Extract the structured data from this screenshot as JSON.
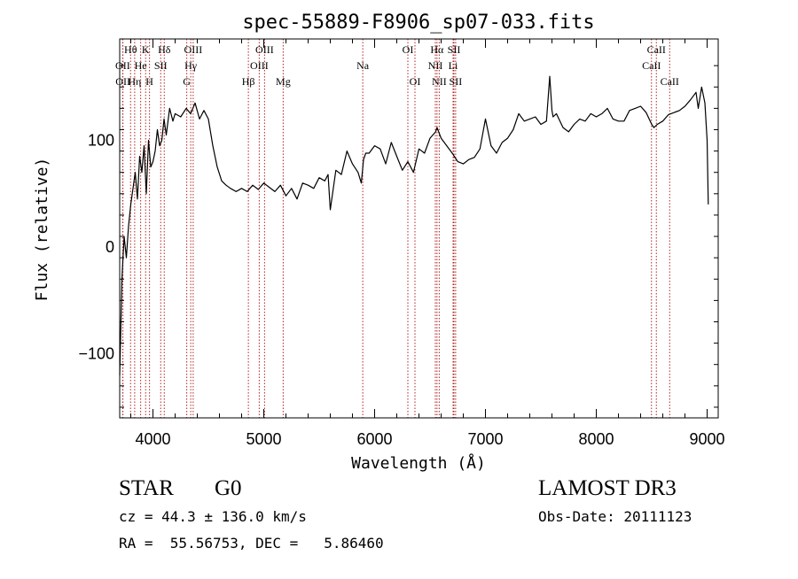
{
  "chart_data": {
    "type": "line",
    "title": "spec-55889-F8906_sp07-033.fits",
    "xlabel": "Wavelength (Å)",
    "ylabel": "Flux (relative)",
    "xlim": [
      3700,
      9100
    ],
    "ylim": [
      -160,
      195
    ],
    "x_ticks": [
      4000,
      5000,
      6000,
      7000,
      8000,
      9000
    ],
    "y_ticks": [
      -100,
      0,
      100
    ],
    "series": [
      {
        "name": "flux",
        "x": [
          3700,
          3720,
          3740,
          3760,
          3780,
          3800,
          3820,
          3840,
          3860,
          3880,
          3900,
          3920,
          3940,
          3960,
          3980,
          4000,
          4020,
          4040,
          4060,
          4080,
          4100,
          4120,
          4150,
          4180,
          4200,
          4250,
          4300,
          4340,
          4380,
          4420,
          4460,
          4500,
          4540,
          4580,
          4620,
          4660,
          4700,
          4750,
          4800,
          4850,
          4900,
          4950,
          5000,
          5050,
          5100,
          5150,
          5200,
          5250,
          5300,
          5350,
          5400,
          5450,
          5500,
          5550,
          5580,
          5600,
          5650,
          5700,
          5750,
          5800,
          5850,
          5880,
          5900,
          5920,
          5950,
          6000,
          6050,
          6100,
          6150,
          6200,
          6250,
          6300,
          6350,
          6400,
          6450,
          6500,
          6550,
          6563,
          6600,
          6650,
          6700,
          6750,
          6800,
          6850,
          6900,
          6950,
          7000,
          7050,
          7100,
          7150,
          7200,
          7250,
          7300,
          7350,
          7400,
          7450,
          7500,
          7550,
          7580,
          7600,
          7610,
          7640,
          7700,
          7750,
          7800,
          7850,
          7900,
          7950,
          8000,
          8050,
          8100,
          8150,
          8200,
          8250,
          8300,
          8350,
          8400,
          8450,
          8500,
          8520,
          8550,
          8600,
          8650,
          8700,
          8750,
          8800,
          8850,
          8900,
          8920,
          8950,
          8980,
          9000,
          9010
        ],
        "y": [
          -120,
          -30,
          10,
          -10,
          20,
          40,
          55,
          70,
          45,
          85,
          70,
          95,
          50,
          100,
          75,
          80,
          90,
          110,
          95,
          100,
          120,
          105,
          130,
          118,
          125,
          122,
          130,
          125,
          135,
          120,
          128,
          120,
          95,
          75,
          62,
          58,
          55,
          52,
          55,
          52,
          58,
          54,
          60,
          56,
          52,
          58,
          48,
          55,
          45,
          60,
          58,
          55,
          65,
          62,
          68,
          35,
          72,
          68,
          90,
          78,
          70,
          60,
          82,
          88,
          88,
          95,
          92,
          78,
          98,
          85,
          72,
          80,
          70,
          92,
          88,
          102,
          108,
          112,
          102,
          95,
          88,
          80,
          78,
          82,
          84,
          92,
          120,
          95,
          88,
          98,
          102,
          110,
          125,
          118,
          120,
          122,
          115,
          118,
          160,
          128,
          122,
          125,
          112,
          108,
          115,
          120,
          118,
          125,
          122,
          125,
          130,
          120,
          118,
          118,
          128,
          130,
          132,
          126,
          115,
          112,
          115,
          118,
          124,
          126,
          128,
          132,
          138,
          145,
          130,
          150,
          135,
          100,
          40
        ]
      }
    ],
    "lines": [
      {
        "label": "Hθ",
        "x": 3798,
        "row": 0
      },
      {
        "label": "OII",
        "x": 3727,
        "row": 1
      },
      {
        "label": "OII",
        "x": 3729,
        "row": 2
      },
      {
        "label": "K",
        "x": 3934,
        "row": 0
      },
      {
        "label": "He",
        "x": 3889,
        "row": 1
      },
      {
        "label": "Hη",
        "x": 3835,
        "row": 2
      },
      {
        "label": "SII",
        "x": 4070,
        "row": 1
      },
      {
        "label": "H",
        "x": 3969,
        "row": 2
      },
      {
        "label": "Hδ",
        "x": 4102,
        "row": 0
      },
      {
        "label": "OIII",
        "x": 4363,
        "row": 0
      },
      {
        "label": "Hγ",
        "x": 4341,
        "row": 1
      },
      {
        "label": "G",
        "x": 4305,
        "row": 2
      },
      {
        "label": "Hβ",
        "x": 4861,
        "row": 2
      },
      {
        "label": "OIII",
        "x": 5007,
        "row": 0
      },
      {
        "label": "OIII",
        "x": 4959,
        "row": 1
      },
      {
        "label": "Mg",
        "x": 5175,
        "row": 2
      },
      {
        "label": "Na",
        "x": 5893,
        "row": 1
      },
      {
        "label": "OI",
        "x": 6300,
        "row": 0
      },
      {
        "label": "OI",
        "x": 6364,
        "row": 2
      },
      {
        "label": "Hα",
        "x": 6563,
        "row": 0
      },
      {
        "label": "SII",
        "x": 6716,
        "row": 0
      },
      {
        "label": "NII",
        "x": 6548,
        "row": 1
      },
      {
        "label": "Li",
        "x": 6708,
        "row": 1
      },
      {
        "label": "NII",
        "x": 6583,
        "row": 2
      },
      {
        "label": "SII",
        "x": 6731,
        "row": 2
      },
      {
        "label": "CaII",
        "x": 8542,
        "row": 0
      },
      {
        "label": "CaII",
        "x": 8498,
        "row": 1
      },
      {
        "label": "CaII",
        "x": 8662,
        "row": 2
      }
    ],
    "colors": {
      "line_markers": "#b22222",
      "spectrum": "#000000"
    }
  },
  "info": {
    "object_class": "STAR",
    "subclass": "G0",
    "survey": "LAMOST DR3",
    "redshift": "cz = 44.3 ± 136.0 km/s",
    "obs_date": "Obs-Date: 20111123",
    "coords": "RA =  55.56753, DEC =   5.86460"
  }
}
